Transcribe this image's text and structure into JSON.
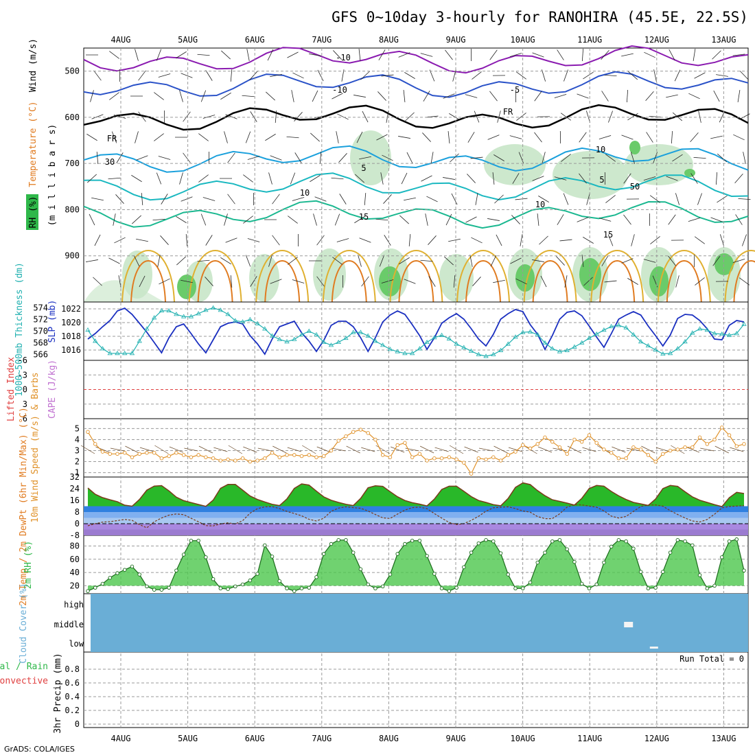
{
  "title": "GFS 0~10day 3-hourly for RANOHIRA (45.5E, 22.5S)",
  "footer": "GrADS: COLA/IGES",
  "colors": {
    "rh": "#2fb84a",
    "temp_warm": "#e07b20",
    "temp_cool": "#1aa4c8",
    "freezing": "#000000",
    "slp": "#1a2fc0",
    "thickness": "#20b0b0",
    "wind": "#e0922a",
    "cloud": "#6aaed6",
    "zero_line": "#e04040"
  },
  "chart_data": [
    {
      "panel": "upper-air",
      "type": "heatmap",
      "title": "Wind (m/s) / Temperature (°C) / RH (%)",
      "ylabel": "(m i l l i b a r s)",
      "ylim": [
        1000,
        450
      ],
      "yticks": [
        "500",
        "600",
        "700",
        "800",
        "900"
      ],
      "x": [
        "4AUG",
        "5AUG",
        "6AUG",
        "7AUG",
        "8AUG",
        "9AUG",
        "10AUG",
        "11AUG",
        "12AUG",
        "13AUG"
      ],
      "legend": [
        "Wind (m/s)",
        "Temperature (°C)",
        "RH (%)"
      ],
      "isotherm_labels": [
        "-10",
        "-10",
        "-5",
        "FR",
        "FR",
        "5",
        "5",
        "10",
        "10",
        "15",
        "15",
        "30",
        "50",
        "10"
      ],
      "isotherms": [
        {
          "label": "-10",
          "level_mb": 475
        },
        {
          "label": "-5",
          "level_mb": 530
        },
        {
          "label": "FR",
          "level_mb": 600
        },
        {
          "label": "5",
          "level_mb": 690
        },
        {
          "label": "10",
          "level_mb": 750
        },
        {
          "label": "15",
          "level_mb": 810
        }
      ]
    },
    {
      "panel": "pressure",
      "type": "line",
      "ylabel_left": "1000~500mb Thickness (dm)",
      "ylabel_right": "SLP (mb)",
      "yticks_left": [
        "574",
        "572",
        "570",
        "568",
        "566"
      ],
      "yticks_right": [
        "1022",
        "1020",
        "1018",
        "1016"
      ],
      "ylim_thickness": [
        565,
        575
      ],
      "ylim_slp": [
        1014.5,
        1023
      ],
      "series": [
        {
          "name": "SLP (mb)",
          "values": [
            1017.6,
            1018.4,
            1019.4,
            1020.3,
            1021.7,
            1022.1,
            1021.2,
            1019.9,
            1018.6,
            1017.1,
            1015.6,
            1017.8,
            1019.4,
            1019.8,
            1018.4,
            1016.9,
            1015.6,
            1017.5,
            1019.4,
            1019.9,
            1020.1,
            1019.8,
            1018.1,
            1016.9,
            1015.4,
            1017.6,
            1019.4,
            1019.8,
            1020.2,
            1018.5,
            1017.3,
            1015.8,
            1017.4,
            1019.6,
            1020.2,
            1020.2,
            1019.4,
            1017.8,
            1015.8,
            1017.8,
            1020.1,
            1021.1,
            1021.7,
            1021.2,
            1019.7,
            1018.1,
            1016.1,
            1017.8,
            1019.9,
            1020.7,
            1021.3,
            1020.5,
            1019.1,
            1017.6,
            1016.6,
            1018.3,
            1020.5,
            1021.3,
            1021.9,
            1021.6,
            1019.7,
            1018.3,
            1016.1,
            1018.1,
            1020.5,
            1021.5,
            1021.7,
            1021.0,
            1019.5,
            1017.9,
            1016.4,
            1018.4,
            1020.5,
            1021.1,
            1021.6,
            1021.1,
            1019.5,
            1018.1,
            1016.6,
            1018.2,
            1020.6,
            1021.2,
            1021.1,
            1020.3,
            1019.1,
            1017.6,
            1017.5,
            1019.6,
            1020.3,
            1020.1
          ]
        },
        {
          "name": "1000~500mb Thickness (dm)",
          "values": [
            570.2,
            568.3,
            567.0,
            566.2,
            566.2,
            566.2,
            566.2,
            568.3,
            570.4,
            572.3,
            573.5,
            573.5,
            572.9,
            572.5,
            572.5,
            573.0,
            573.6,
            574.0,
            573.6,
            572.9,
            571.8,
            571.6,
            572.0,
            571.3,
            570.4,
            569.2,
            568.6,
            568.2,
            568.6,
            569.4,
            570.0,
            569.4,
            568.1,
            567.6,
            568.1,
            568.8,
            569.8,
            569.8,
            569.2,
            568.3,
            567.6,
            566.9,
            566.5,
            566.2,
            566.2,
            567.0,
            568.1,
            568.9,
            569.3,
            568.7,
            567.8,
            567.2,
            566.6,
            566.0,
            565.7,
            566.0,
            566.7,
            567.8,
            569.0,
            569.8,
            569.9,
            569.4,
            568.0,
            567.0,
            566.5,
            566.7,
            567.3,
            568.0,
            568.8,
            569.5,
            570.2,
            570.8,
            571.0,
            570.6,
            569.4,
            568.2,
            567.5,
            566.8,
            566.1,
            566.2,
            567.0,
            568.2,
            569.7,
            570.4,
            570.2,
            569.6,
            569.5,
            569.3,
            569.6,
            571.2
          ]
        }
      ]
    },
    {
      "panel": "instability",
      "type": "line",
      "ylabel_left": "Lifted Index",
      "ylabel_right": "CAPE (J/kg)",
      "yticks": [
        "-6",
        "-3",
        "0",
        "3",
        "6"
      ],
      "ylim": [
        -6,
        6
      ],
      "series": []
    },
    {
      "panel": "wind10m",
      "type": "line",
      "ylabel": "10m Wind Speed (m/s) & Barbs",
      "yticks": [
        "5",
        "4",
        "3",
        "2",
        "1"
      ],
      "ylim": [
        0.6,
        5.9
      ],
      "series": [
        {
          "name": "10m Wind Speed (m/s)",
          "values": [
            4.7,
            3.6,
            2.9,
            2.7,
            2.7,
            2.8,
            2.4,
            2.7,
            2.8,
            2.8,
            2.3,
            2.5,
            2.8,
            2.6,
            2.4,
            2.6,
            2.4,
            2.3,
            2.1,
            2.2,
            2.1,
            2.3,
            2.0,
            2.1,
            2.3,
            2.8,
            2.4,
            2.6,
            2.6,
            2.5,
            2.6,
            2.4,
            2.5,
            3.0,
            3.9,
            4.3,
            4.7,
            4.9,
            4.6,
            4.0,
            2.6,
            2.4,
            3.5,
            3.7,
            2.4,
            2.7,
            2.1,
            2.3,
            2.3,
            2.4,
            2.2,
            1.9,
            0.9,
            2.3,
            2.2,
            2.4,
            2.1,
            2.6,
            2.9,
            3.5,
            3.2,
            3.6,
            4.2,
            3.8,
            3.3,
            2.7,
            4.0,
            3.8,
            4.4,
            3.7,
            3.1,
            2.8,
            2.3,
            2.3,
            3.3,
            3.1,
            2.6,
            2.0,
            2.7,
            3.0,
            3.1,
            3.3,
            3.3,
            4.2,
            3.6,
            4.0,
            5.1,
            4.4,
            3.4,
            3.6
          ]
        }
      ]
    },
    {
      "panel": "temperature2m",
      "type": "area",
      "ylabel": "2m Temp / 2m DewPt (6hr Min/Max) (°C)",
      "yticks": [
        "32",
        "24",
        "16",
        "8",
        "0",
        "-8"
      ],
      "ylim": [
        -8,
        32
      ],
      "series": [
        {
          "name": "2m Temp (°C)",
          "values": [
            24.5,
            20.2,
            17.9,
            16.4,
            15.1,
            12.7,
            12.0,
            16.6,
            23.0,
            25.8,
            26.1,
            22.5,
            18.2,
            15.8,
            14.5,
            13.2,
            11.9,
            16.2,
            24.3,
            26.9,
            26.9,
            23.0,
            19.0,
            16.6,
            14.9,
            13.3,
            12.4,
            17.0,
            24.2,
            27.3,
            26.5,
            22.3,
            18.4,
            16.1,
            14.6,
            13.3,
            12.4,
            17.3,
            24.6,
            26.0,
            25.6,
            22.0,
            18.5,
            15.9,
            14.4,
            13.4,
            12.2,
            16.9,
            23.5,
            25.7,
            25.7,
            22.2,
            18.6,
            15.9,
            14.6,
            13.1,
            12.3,
            17.3,
            24.9,
            28.0,
            26.8,
            22.7,
            19.2,
            16.4,
            15.3,
            14.1,
            12.8,
            17.4,
            24.1,
            26.2,
            25.7,
            22.1,
            19.1,
            16.6,
            14.6,
            13.6,
            12.5,
            16.9,
            24.1,
            26.2,
            25.6,
            21.9,
            18.4,
            16.1,
            14.6,
            13.1,
            11.7,
            17.8,
            21.5,
            20.7
          ]
        },
        {
          "name": "2m DewPt (°C)",
          "values": [
            -1.4,
            0.0,
            1.1,
            1.4,
            2.1,
            2.9,
            2.3,
            -0.6,
            -2.8,
            1.3,
            3.9,
            5.9,
            6.7,
            6.2,
            3.7,
            1.3,
            -1.3,
            -1.5,
            -0.2,
            0.6,
            -0.2,
            2.1,
            7.2,
            10.3,
            11.6,
            11.7,
            10.4,
            8.4,
            7.0,
            5.4,
            3.0,
            1.9,
            3.7,
            8.5,
            10.7,
            11.6,
            11.0,
            10.6,
            8.7,
            6.3,
            4.0,
            3.6,
            6.6,
            9.3,
            11.0,
            11.4,
            10.3,
            6.9,
            3.8,
            0.9,
            -0.6,
            0.0,
            2.3,
            5.1,
            8.6,
            10.9,
            11.3,
            11.6,
            10.4,
            8.7,
            7.9,
            4.9,
            3.5,
            3.5,
            6.8,
            11.4,
            13.0,
            12.9,
            12.1,
            11.3,
            8.8,
            5.2,
            3.9,
            5.0,
            8.4,
            11.8,
            12.8,
            12.9,
            12.0,
            8.9,
            6.3,
            3.9,
            1.9,
            1.2,
            2.9,
            6.5,
            10.8,
            11.8,
            12.1,
            12.4
          ]
        }
      ]
    },
    {
      "panel": "rh2m",
      "type": "area",
      "ylabel": "2m RH (%)",
      "yticks": [
        "80",
        "60",
        "40",
        "20"
      ],
      "ylim": [
        8,
        96
      ],
      "series": [
        {
          "name": "2m RH (%)",
          "values": [
            12,
            17,
            23,
            32,
            39,
            44,
            49,
            37,
            19,
            14,
            14,
            17,
            43,
            67,
            88,
            88,
            63,
            30,
            16,
            15,
            19,
            22,
            28,
            38,
            81,
            64,
            27,
            16,
            12,
            16,
            17,
            33,
            68,
            83,
            89,
            89,
            70,
            45,
            22,
            16,
            19,
            37,
            68,
            83,
            88,
            88,
            65,
            38,
            16,
            12,
            17,
            48,
            70,
            84,
            89,
            87,
            69,
            37,
            16,
            16,
            25,
            55,
            70,
            87,
            89,
            75,
            56,
            23,
            16,
            22,
            55,
            79,
            89,
            87,
            76,
            41,
            16,
            17,
            41,
            70,
            89,
            87,
            81,
            36,
            16,
            20,
            63,
            87,
            90,
            43
          ]
        }
      ]
    },
    {
      "panel": "cloud",
      "type": "heatmap",
      "ylabel": "Cloud Cover (%)",
      "yticks": [
        "high",
        "middle",
        "low"
      ],
      "rows": [
        "high",
        "middle",
        "low"
      ],
      "clear_cells": [
        {
          "row": "middle",
          "day": "11AUG"
        },
        {
          "row": "low",
          "day": "12AUG"
        }
      ]
    },
    {
      "panel": "precip",
      "type": "bar",
      "ylabel": "3hr Precip (mm)",
      "legend": [
        "Total / Rain",
        "Convective"
      ],
      "yticks": [
        "0.8",
        "0.6",
        "0.4",
        "0.2",
        "0"
      ],
      "ylim": [
        0,
        1
      ],
      "run_total": "Run Total = 0",
      "x": [
        "4AUG",
        "5AUG",
        "6AUG",
        "7AUG",
        "8AUG",
        "9AUG",
        "10AUG",
        "11AUG",
        "12AUG",
        "13AUG"
      ]
    }
  ]
}
